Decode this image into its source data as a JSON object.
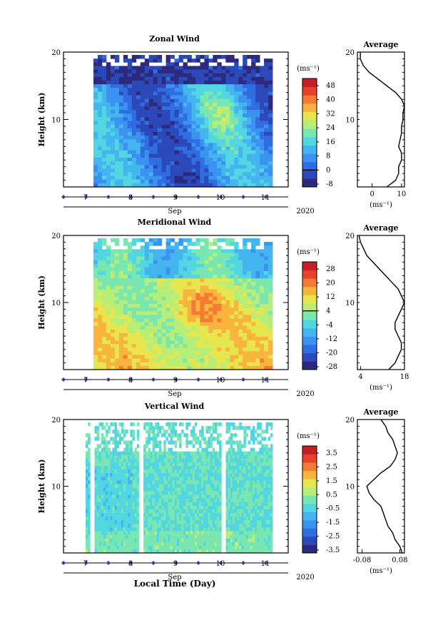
{
  "chart_data": [
    {
      "type": "heatmap",
      "title": "Zonal Wind",
      "ylabel": "Height (km)",
      "ylim": [
        0,
        20
      ],
      "yticks": [
        "20",
        "10"
      ],
      "xticks": [
        "7",
        "8",
        "9",
        "10",
        "11"
      ],
      "xlabel": "Sep",
      "year": "2020",
      "colorbar": {
        "unit": "(ms⁻¹)",
        "labels": [
          "48",
          "40",
          "32",
          "24",
          "16",
          "8",
          "0",
          "-8"
        ],
        "min": -8,
        "max": 52
      },
      "profile": {
        "title": "Average",
        "xticks": [
          "0",
          "10"
        ],
        "xunit": "(ms⁻¹)",
        "xlim": [
          -5,
          11
        ],
        "heights": [
          0,
          1,
          2,
          3,
          4,
          5,
          6,
          7,
          8,
          9,
          10,
          11,
          12,
          13,
          14,
          15,
          16,
          17,
          18,
          19,
          20
        ],
        "values": [
          5,
          8,
          9,
          9,
          10,
          10,
          9,
          9.5,
          10,
          10,
          10.5,
          10.5,
          11,
          10,
          8,
          5,
          2,
          -1,
          -3,
          -4,
          -4
        ]
      }
    },
    {
      "type": "heatmap",
      "title": "Meridional Wind",
      "ylabel": "Height (km)",
      "ylim": [
        0,
        20
      ],
      "yticks": [
        "20",
        "10"
      ],
      "xticks": [
        "7",
        "8",
        "9",
        "10",
        "11"
      ],
      "xlabel": "Sep",
      "year": "2020",
      "colorbar": {
        "unit": "(ms⁻¹)",
        "labels": [
          "28",
          "20",
          "12",
          "4",
          "-4",
          "-12",
          "-20",
          "-28"
        ],
        "min": -32,
        "max": 32
      },
      "profile": {
        "title": "Average",
        "xticks": [
          "4",
          "18"
        ],
        "xunit": "(ms⁻¹)",
        "xlim": [
          3,
          18
        ],
        "heights": [
          0,
          1,
          2,
          3,
          4,
          5,
          6,
          7,
          8,
          9,
          10,
          11,
          12,
          13,
          14,
          15,
          16,
          17,
          18,
          19,
          20
        ],
        "values": [
          13,
          15,
          16,
          17,
          17,
          16,
          15,
          15,
          16,
          17,
          18,
          17,
          16,
          14,
          12,
          10,
          8,
          6,
          5,
          4,
          3.5
        ]
      }
    },
    {
      "type": "heatmap",
      "title": "Vertical Wind",
      "ylabel": "Height (km)",
      "ylim": [
        0,
        20
      ],
      "yticks": [
        "20",
        "10"
      ],
      "xticks": [
        "7",
        "8",
        "9",
        "10",
        "11"
      ],
      "xlabel": "Sep",
      "year": "2020",
      "colorbar": {
        "unit": "(ms⁻¹)",
        "labels": [
          "3.5",
          "2.5",
          "1.5",
          "0.5",
          "-0.5",
          "-1.5",
          "-2.5",
          "-3.5"
        ],
        "min": -4,
        "max": 4
      },
      "profile": {
        "title": "Average",
        "xticks": [
          "-0.08",
          "0.08"
        ],
        "xunit": "(ms⁻¹)",
        "xlim": [
          -0.1,
          0.1
        ],
        "heights": [
          0,
          1,
          2,
          3,
          4,
          5,
          6,
          7,
          8,
          9,
          10,
          11,
          12,
          13,
          14,
          15,
          16,
          17,
          18,
          19,
          20
        ],
        "values": [
          0.09,
          0.08,
          0.06,
          0.05,
          0.03,
          0.02,
          0.01,
          0.0,
          -0.03,
          -0.05,
          -0.06,
          -0.03,
          0.0,
          0.04,
          0.06,
          0.07,
          0.06,
          0.05,
          0.03,
          0.02,
          0.0
        ]
      }
    }
  ],
  "footer": {
    "xlabel": "Local Time (Day)"
  },
  "colors": {
    "scale": [
      "#2d2a7e",
      "#2b49b8",
      "#2f6ee0",
      "#3b92f0",
      "#45b5f0",
      "#52d6e2",
      "#7ae6b0",
      "#b6ee78",
      "#e8e64e",
      "#f8b43c",
      "#f57a35",
      "#e8412c",
      "#c41f25"
    ],
    "frame": "#000000",
    "marker": "#3a3a9a"
  }
}
